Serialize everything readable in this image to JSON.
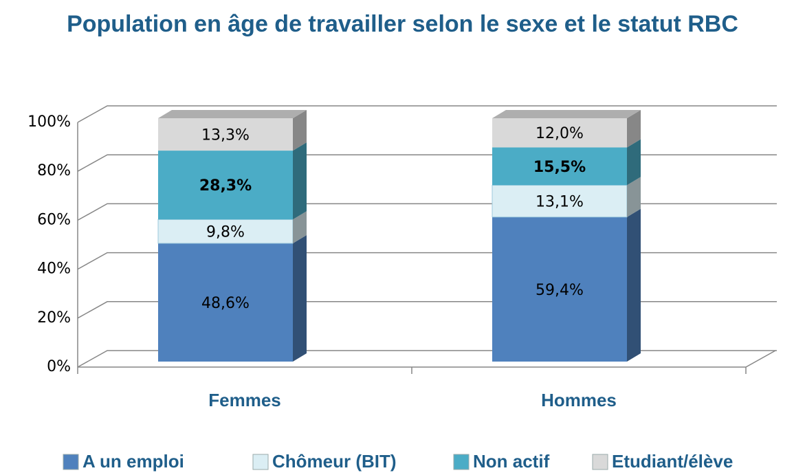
{
  "chart_data": {
    "type": "stacked_bar_3d",
    "title": "Population en âge de travailler selon le sexe et le statut RBC",
    "categories": [
      "Femmes",
      "Hommes"
    ],
    "series": [
      {
        "name": "A un emploi",
        "color": "#4f81bd",
        "values": [
          48.6,
          59.4
        ],
        "value_labels": [
          "48,6%",
          "59,4%"
        ]
      },
      {
        "name": "Chômeur (BIT)",
        "color": "#dbeef4",
        "values": [
          9.8,
          13.1
        ],
        "value_labels": [
          "9,8%",
          "13,1%"
        ]
      },
      {
        "name": "Non actif",
        "color": "#4bacc6",
        "values": [
          28.3,
          15.5
        ],
        "value_labels": [
          "28,3%",
          "15,5%"
        ]
      },
      {
        "name": "Etudiant/élève",
        "color": "#d9d9d9",
        "values": [
          13.3,
          12.0
        ],
        "value_labels": [
          "13,3%",
          "12,0%"
        ]
      }
    ],
    "ylim": [
      0,
      100
    ],
    "yticks": [
      {
        "value": 0,
        "label": "0%"
      },
      {
        "value": 20,
        "label": "20%"
      },
      {
        "value": 40,
        "label": "40%"
      },
      {
        "value": 60,
        "label": "60%"
      },
      {
        "value": 80,
        "label": "80%"
      },
      {
        "value": 100,
        "label": "100%"
      }
    ],
    "grid": true,
    "legend": "bottom"
  }
}
